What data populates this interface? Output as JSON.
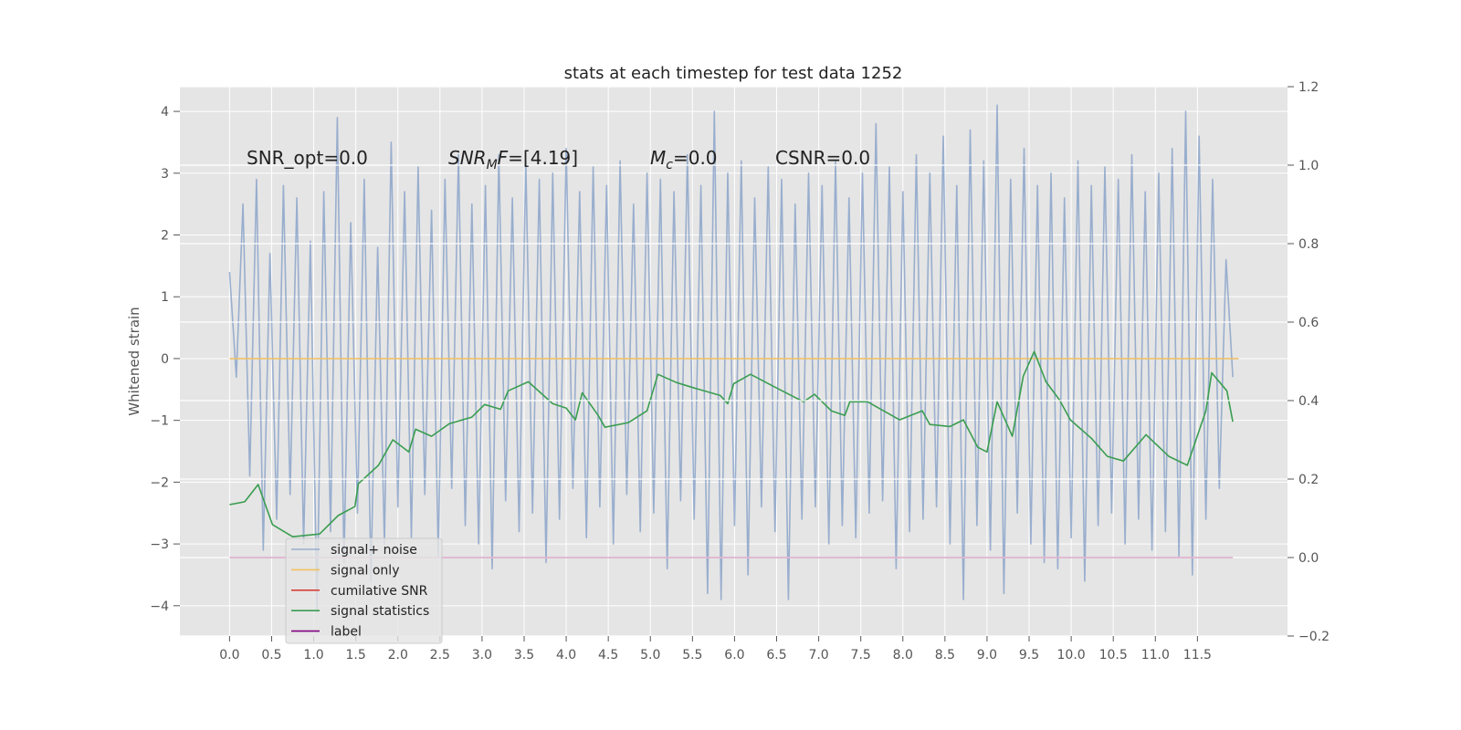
{
  "chart_data": {
    "type": "line",
    "title": "stats at each timestep for test data 1252",
    "ylabel": "Whitened strain",
    "annotations": [
      [
        {
          "text": "SNR_opt=0.0"
        }
      ],
      [
        {
          "text": "SNR",
          "italic": true
        },
        {
          "text": "M",
          "italic": true,
          "sub": true
        },
        {
          "text": "F",
          "italic": true
        },
        {
          "text": "=[4.19]"
        }
      ],
      [
        {
          "text": "M",
          "italic": true
        },
        {
          "text": "c",
          "italic": true,
          "sub": true
        },
        {
          "text": "=0.0"
        }
      ],
      [
        {
          "text": "CSNR=0.0"
        }
      ]
    ],
    "xlim": [
      -0.59,
      12.57
    ],
    "ylim": [
      -4.49,
      4.4
    ],
    "y2lim": [
      -0.2,
      1.2
    ],
    "xticks": [
      {
        "value": 0,
        "label": "0.0"
      },
      0.5,
      {
        "value": 1,
        "label": "1.0"
      },
      1.5,
      {
        "value": 2,
        "label": "2.0"
      },
      2.5,
      {
        "value": 3,
        "label": "3.0"
      },
      3.5,
      {
        "value": 4,
        "label": "4.0"
      },
      4.5,
      {
        "value": 5,
        "label": "5.0"
      },
      5.5,
      {
        "value": 6,
        "label": "6.0"
      },
      6.5,
      {
        "value": 7,
        "label": "7.0"
      },
      7.5,
      {
        "value": 8,
        "label": "8.0"
      },
      8.5,
      {
        "value": 9,
        "label": "9.0"
      },
      9.5,
      {
        "value": 10,
        "label": "10.0"
      },
      10.5,
      {
        "value": 11,
        "label": "11.0"
      },
      11.5
    ],
    "yticks": [
      {
        "value": -4,
        "label": "−4"
      },
      {
        "value": -3,
        "label": "−3"
      },
      {
        "value": -2,
        "label": "−2"
      },
      {
        "value": -1,
        "label": "−1"
      },
      0,
      1,
      2,
      3,
      4
    ],
    "y2ticks": [
      {
        "value": -0.2,
        "label": "−0.2"
      },
      {
        "value": 0,
        "label": "0.0"
      },
      0.2,
      0.4,
      0.6,
      0.8,
      {
        "value": 1,
        "label": "1.0"
      },
      1.2
    ],
    "grid": true,
    "legend": "lower left",
    "series": [
      {
        "name": "signal+ noise",
        "color": "#7f9bc6",
        "x": [
          0,
          0.08,
          0.16,
          0.24,
          0.32,
          0.4,
          0.48,
          0.56,
          0.64,
          0.72,
          0.8,
          0.88,
          0.96,
          1.04,
          1.12,
          1.2,
          1.28,
          1.36,
          1.44,
          1.52,
          1.6,
          1.68,
          1.76,
          1.84,
          1.92,
          2,
          2.08,
          2.16,
          2.24,
          2.32,
          2.4,
          2.48,
          2.56,
          2.64,
          2.72,
          2.8,
          2.88,
          2.96,
          3.04,
          3.12,
          3.2,
          3.28,
          3.36,
          3.44,
          3.52,
          3.6,
          3.68,
          3.76,
          3.84,
          3.92,
          4,
          4.08,
          4.16,
          4.24,
          4.32,
          4.4,
          4.48,
          4.56,
          4.64,
          4.72,
          4.8,
          4.88,
          4.96,
          5.04,
          5.12,
          5.2,
          5.28,
          5.36,
          5.44,
          5.52,
          5.6,
          5.68,
          5.76,
          5.84,
          5.92,
          6,
          6.08,
          6.16,
          6.24,
          6.32,
          6.4,
          6.48,
          6.56,
          6.64,
          6.72,
          6.8,
          6.88,
          6.96,
          7.04,
          7.12,
          7.2,
          7.28,
          7.36,
          7.44,
          7.52,
          7.6,
          7.68,
          7.76,
          7.84,
          7.92,
          8,
          8.08,
          8.16,
          8.24,
          8.32,
          8.4,
          8.48,
          8.56,
          8.64,
          8.72,
          8.8,
          8.88,
          8.96,
          9.04,
          9.12,
          9.2,
          9.28,
          9.36,
          9.44,
          9.52,
          9.6,
          9.68,
          9.76,
          9.84,
          9.92,
          10,
          10.08,
          10.16,
          10.24,
          10.32,
          10.4,
          10.48,
          10.56,
          10.64,
          10.72,
          10.8,
          10.88,
          10.96,
          11.04,
          11.12,
          11.2,
          11.28,
          11.36,
          11.44,
          11.52,
          11.6,
          11.68,
          11.76,
          11.84,
          11.92
        ],
        "values": [
          1.4,
          -0.3,
          2.5,
          -1.9,
          2.9,
          -3.1,
          1.7,
          -2.6,
          2.8,
          -2.2,
          2.6,
          -3.0,
          1.9,
          -4.1,
          2.7,
          -2.8,
          3.9,
          -3.3,
          2.2,
          -2.5,
          2.9,
          -3.6,
          1.8,
          -3.0,
          3.5,
          -2.4,
          2.7,
          -2.9,
          3.1,
          -2.2,
          2.4,
          -3.2,
          2.9,
          -2.1,
          3.3,
          -2.7,
          2.5,
          -3.0,
          2.8,
          -3.4,
          3.3,
          -2.3,
          2.6,
          -2.8,
          3.2,
          -2.5,
          2.9,
          -3.3,
          3.0,
          -2.6,
          3.4,
          -2.1,
          2.7,
          -2.9,
          3.1,
          -2.4,
          2.8,
          -3.0,
          3.2,
          -2.2,
          2.5,
          -2.8,
          3.0,
          -2.5,
          2.9,
          -3.4,
          2.7,
          -2.3,
          3.3,
          -2.6,
          2.8,
          -3.8,
          4.0,
          -3.9,
          3.0,
          -2.7,
          3.2,
          -3.5,
          2.6,
          -2.4,
          3.1,
          -2.8,
          2.9,
          -3.9,
          2.5,
          -2.6,
          3.0,
          -2.4,
          2.8,
          -3.0,
          3.2,
          -2.7,
          2.6,
          -2.9,
          3.0,
          -2.5,
          3.8,
          -2.3,
          3.1,
          -3.4,
          2.7,
          -2.8,
          3.3,
          -2.6,
          3.0,
          -2.4,
          3.6,
          -3.0,
          2.8,
          -3.9,
          3.7,
          -2.7,
          3.2,
          -3.1,
          4.1,
          -3.8,
          2.9,
          -2.5,
          3.4,
          -3.0,
          2.8,
          -3.3,
          3.0,
          -3.4,
          2.6,
          -2.9,
          3.2,
          -3.6,
          2.8,
          -2.7,
          3.1,
          -2.5,
          2.9,
          -3.0,
          3.3,
          -2.6,
          2.7,
          -3.1,
          3.0,
          -2.8,
          3.4,
          -3.2,
          4.0,
          -3.5,
          3.6,
          -2.6,
          2.9,
          -2.1,
          1.6,
          -0.3
        ]
      },
      {
        "name": "signal only",
        "color": "#f0c060",
        "x": [
          0,
          11.99
        ],
        "values": [
          0,
          0
        ]
      },
      {
        "name": "cumilative SNR",
        "color": "#d9403a",
        "axis": "y2",
        "x": [
          0,
          11.92
        ],
        "values": [
          0,
          0
        ]
      },
      {
        "name": "signal statistics",
        "color": "#3a9d50",
        "axis": "y2",
        "x": [
          0,
          0.18,
          0.34,
          0.51,
          0.75,
          1.07,
          1.29,
          1.49,
          1.53,
          1.77,
          1.94,
          2.13,
          2.21,
          2.4,
          2.61,
          2.88,
          3.03,
          3.22,
          3.31,
          3.55,
          3.84,
          4.0,
          4.11,
          4.19,
          4.38,
          4.46,
          4.74,
          4.96,
          5.09,
          5.31,
          5.52,
          5.83,
          5.92,
          5.99,
          6.19,
          6.5,
          6.82,
          6.95,
          7.15,
          7.31,
          7.37,
          7.58,
          7.96,
          8.23,
          8.32,
          8.56,
          8.72,
          8.89,
          9.0,
          9.12,
          9.3,
          9.43,
          9.56,
          9.7,
          9.86,
          9.99,
          10.24,
          10.43,
          10.62,
          10.89,
          11.16,
          11.38,
          11.6,
          11.67,
          11.85,
          11.92
        ],
        "values": [
          0.135,
          0.142,
          0.186,
          0.084,
          0.053,
          0.06,
          0.107,
          0.13,
          0.188,
          0.235,
          0.3,
          0.269,
          0.327,
          0.309,
          0.341,
          0.358,
          0.39,
          0.378,
          0.425,
          0.448,
          0.392,
          0.381,
          0.351,
          0.42,
          0.362,
          0.332,
          0.344,
          0.374,
          0.467,
          0.446,
          0.432,
          0.413,
          0.392,
          0.443,
          0.467,
          0.432,
          0.397,
          0.416,
          0.374,
          0.362,
          0.397,
          0.397,
          0.351,
          0.374,
          0.339,
          0.334,
          0.351,
          0.281,
          0.269,
          0.397,
          0.309,
          0.462,
          0.525,
          0.448,
          0.402,
          0.351,
          0.304,
          0.258,
          0.246,
          0.313,
          0.258,
          0.235,
          0.374,
          0.471,
          0.425,
          0.346
        ]
      },
      {
        "name": "label",
        "color": "#800080",
        "axis": "y2",
        "x": [
          0,
          11.92
        ],
        "values": [
          0,
          0
        ]
      }
    ]
  }
}
